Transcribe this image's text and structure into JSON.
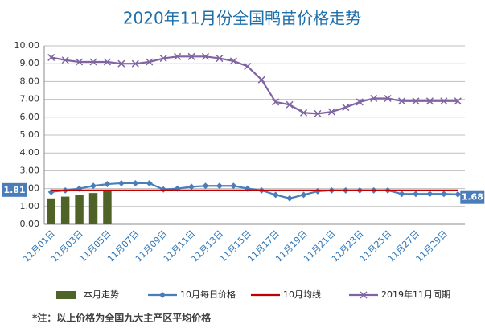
{
  "chart_data": {
    "type": "combo",
    "title": "2020年11月份全国鸭苗价格走势",
    "categories": [
      "11月01日",
      null,
      "11月03日",
      null,
      "11月05日",
      null,
      "11月07日",
      null,
      "11月09日",
      null,
      "11月11日",
      null,
      "11月13日",
      null,
      "11月15日",
      null,
      "11月17日",
      null,
      "11月19日",
      null,
      "11月21日",
      null,
      "11月23日",
      null,
      "11月25日",
      null,
      "11月27日",
      null,
      "11月29日",
      null
    ],
    "series": [
      {
        "name": "本月走势",
        "kind": "bar",
        "color": "#4f6228",
        "values": [
          1.45,
          1.55,
          1.65,
          1.75,
          1.85,
          null,
          null,
          null,
          null,
          null,
          null,
          null,
          null,
          null,
          null,
          null,
          null,
          null,
          null,
          null,
          null,
          null,
          null,
          null,
          null,
          null,
          null,
          null,
          null,
          null
        ]
      },
      {
        "name": "10月每日价格",
        "kind": "line",
        "marker": "diamond",
        "color": "#4a7ebb",
        "values": [
          1.81,
          1.9,
          2.0,
          2.15,
          2.25,
          2.3,
          2.3,
          2.3,
          1.95,
          2.0,
          2.1,
          2.15,
          2.15,
          2.15,
          2.0,
          1.9,
          1.65,
          1.45,
          1.65,
          1.85,
          1.9,
          1.9,
          1.9,
          1.9,
          1.9,
          1.7,
          1.7,
          1.7,
          1.7,
          1.68
        ]
      },
      {
        "name": "10月均线",
        "kind": "line",
        "marker": "none",
        "color": "#c00000",
        "values": [
          1.9,
          1.9,
          1.9,
          1.9,
          1.9,
          1.9,
          1.9,
          1.9,
          1.9,
          1.9,
          1.9,
          1.9,
          1.9,
          1.9,
          1.9,
          1.9,
          1.9,
          1.9,
          1.9,
          1.9,
          1.9,
          1.9,
          1.9,
          1.9,
          1.9,
          1.9,
          1.9,
          1.9,
          1.9,
          1.9
        ]
      },
      {
        "name": "2019年11月同期",
        "kind": "line",
        "marker": "x",
        "color": "#8064a2",
        "values": [
          9.35,
          9.2,
          9.1,
          9.1,
          9.1,
          9.0,
          9.0,
          9.1,
          9.3,
          9.4,
          9.4,
          9.4,
          9.3,
          9.15,
          8.85,
          8.1,
          6.85,
          6.7,
          6.25,
          6.2,
          6.3,
          6.55,
          6.85,
          7.05,
          7.05,
          6.9,
          6.9,
          6.9,
          6.9,
          6.9
        ]
      }
    ],
    "ylim": [
      0,
      10
    ],
    "yticks": [
      {
        "value": 0,
        "label": "0.00"
      },
      {
        "value": 1,
        "label": "1.00"
      },
      {
        "value": 2,
        "label": "2.00"
      },
      {
        "value": 3,
        "label": "3.00"
      },
      {
        "value": 4,
        "label": "4.00"
      },
      {
        "value": 5,
        "label": "5.00"
      },
      {
        "value": 6,
        "label": "6.00"
      },
      {
        "value": 7,
        "label": "7.00"
      },
      {
        "value": 8,
        "label": "8.00"
      },
      {
        "value": 9,
        "label": "9.00"
      },
      {
        "value": 10,
        "label": "10.00"
      }
    ],
    "grid": true,
    "legend": "bottom",
    "footnote": "*注：以上价格为全国九大主产区平均价格"
  }
}
